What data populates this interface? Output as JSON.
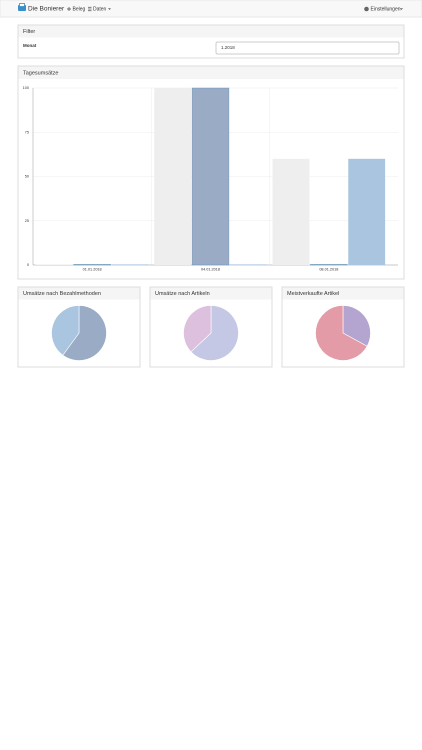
{
  "navbar": {
    "brand": "Die Bonierer",
    "items": [
      "Beleg",
      "Daten"
    ],
    "settings": "Einstellungen"
  },
  "filter": {
    "title": "Filter",
    "label": "Monat",
    "value": "1.2018"
  },
  "chart_data": [
    {
      "type": "bar",
      "title": "Tagesumsätze",
      "categories": [
        "01.01.2018",
        "04.01.2018",
        "08.01.2018"
      ],
      "series": [
        {
          "color": "#eeeeee",
          "values": [
            0,
            100,
            60
          ]
        },
        {
          "color": "#9aabc6",
          "values": [
            0,
            100,
            0
          ]
        },
        {
          "color": "#a9c5e0",
          "values": [
            0,
            0,
            60
          ]
        }
      ],
      "ylim": [
        0,
        100
      ],
      "yticks": [
        0,
        25,
        50,
        75,
        100
      ],
      "grid": true
    },
    {
      "type": "pie",
      "title": "Umsätze nach Bezahlmethoden",
      "values": [
        60,
        40
      ],
      "colors": [
        "#9aabc6",
        "#a9c5e0"
      ]
    },
    {
      "type": "pie",
      "title": "Umsätze nach Artikeln",
      "values": [
        63,
        37
      ],
      "colors": [
        "#c5c8e4",
        "#dcc0dd"
      ]
    },
    {
      "type": "pie",
      "title": "Meistverkaufte Artikel",
      "values": [
        33,
        67
      ],
      "colors": [
        "#b4a4d0",
        "#e39ca7"
      ]
    }
  ]
}
